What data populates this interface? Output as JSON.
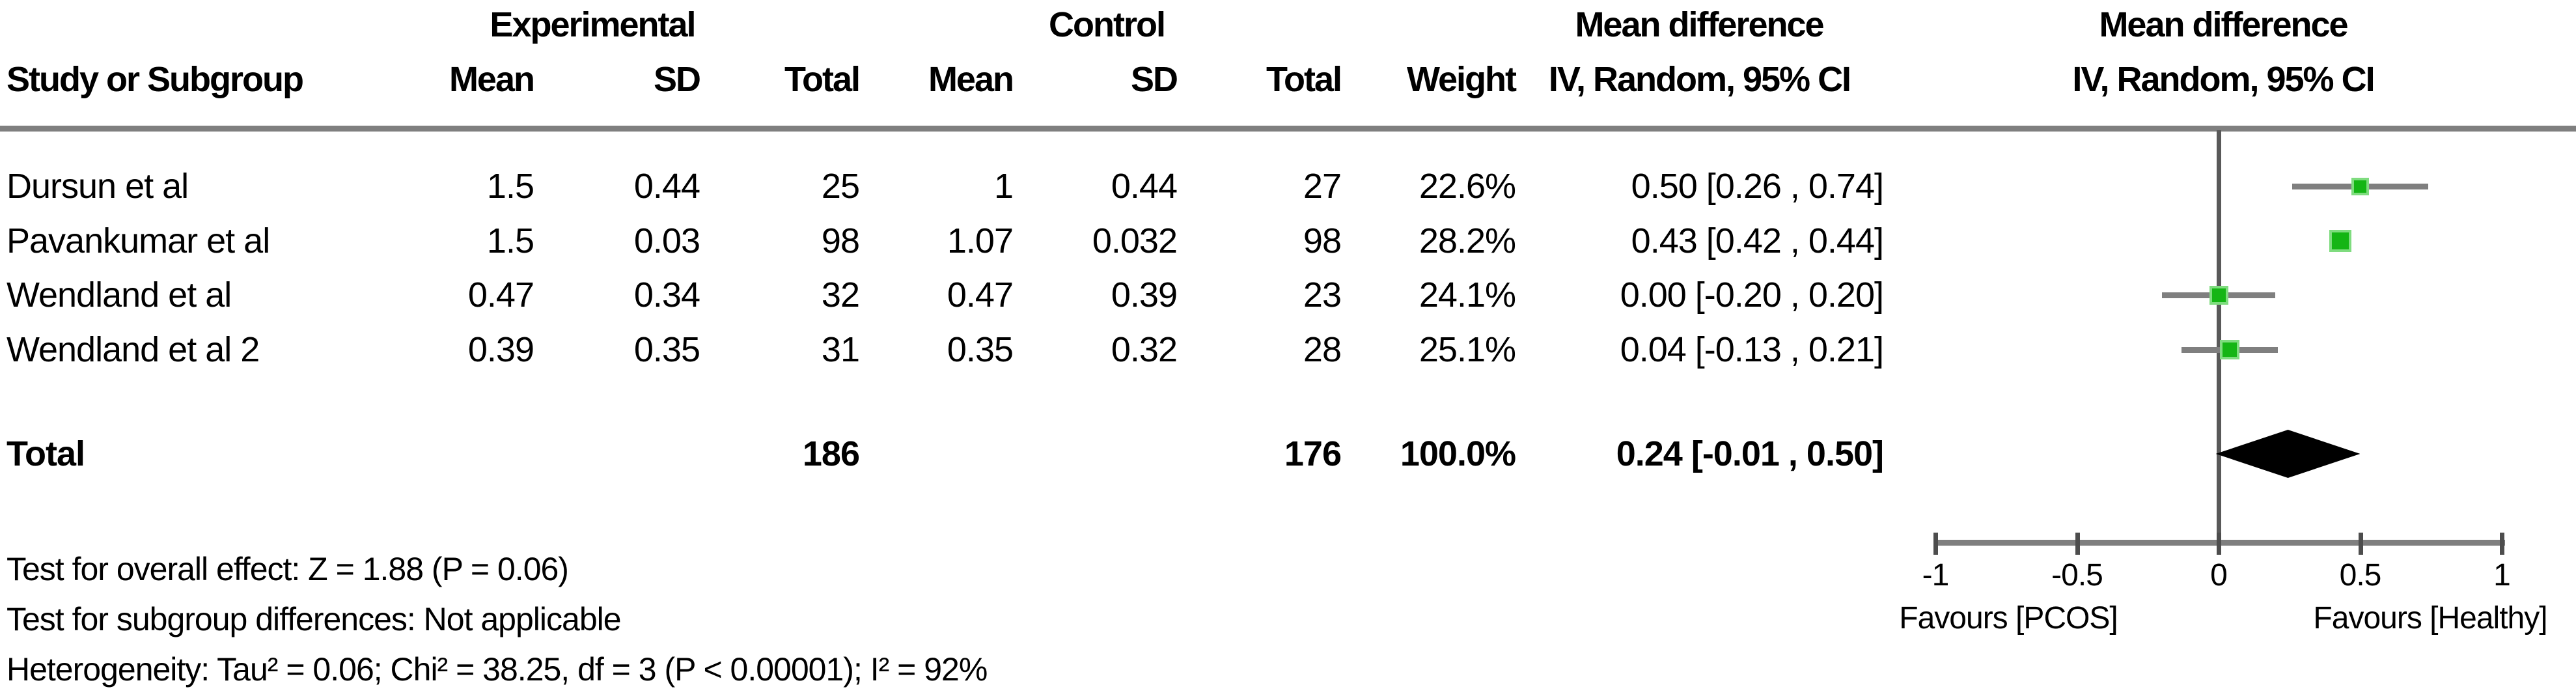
{
  "colors": {
    "square_green": "#14b514",
    "square_green_halo": "#7fdc7f",
    "ci_bar_gray": "#7f7f7f",
    "rule_gray": "#7f7f7f",
    "zero_line_gray": "#595959",
    "tick_dark_gray": "#4d4d4d",
    "diamond_black": "#000000",
    "text_black": "#000000",
    "background": "#ffffff"
  },
  "header": {
    "group_experimental": "Experimental",
    "group_control": "Control",
    "group_mean_difference": "Mean difference",
    "group_mean_difference_plot": "Mean difference",
    "col_study": "Study or Subgroup",
    "col_exp_mean": "Mean",
    "col_exp_sd": "SD",
    "col_exp_total": "Total",
    "col_ctl_mean": "Mean",
    "col_ctl_sd": "SD",
    "col_ctl_total": "Total",
    "col_weight": "Weight",
    "col_ci": "IV, Random, 95% CI",
    "col_ci_plot": "IV, Random, 95% CI"
  },
  "table": {
    "rows": [
      {
        "study": "Dursun et al",
        "exp_mean": "1.5",
        "exp_sd": "0.44",
        "exp_total": "25",
        "ctl_mean": "1",
        "ctl_sd": "0.44",
        "ctl_total": "27",
        "weight": "22.6%",
        "ci_text": "0.50 [0.26 , 0.74]"
      },
      {
        "study": "Pavankumar  et al",
        "exp_mean": "1.5",
        "exp_sd": "0.03",
        "exp_total": "98",
        "ctl_mean": "1.07",
        "ctl_sd": "0.032",
        "ctl_total": "98",
        "weight": "28.2%",
        "ci_text": "0.43 [0.42 , 0.44]"
      },
      {
        "study": "Wendland et al",
        "exp_mean": "0.47",
        "exp_sd": "0.34",
        "exp_total": "32",
        "ctl_mean": "0.47",
        "ctl_sd": "0.39",
        "ctl_total": "23",
        "weight": "24.1%",
        "ci_text": "0.00 [-0.20 , 0.20]"
      },
      {
        "study": "Wendland et al 2",
        "exp_mean": "0.39",
        "exp_sd": "0.35",
        "exp_total": "31",
        "ctl_mean": "0.35",
        "ctl_sd": "0.32",
        "ctl_total": "28",
        "weight": "25.1%",
        "ci_text": "0.04 [-0.13 , 0.21]"
      }
    ],
    "total_row": {
      "label": "Total",
      "exp_total": "186",
      "ctl_total": "176",
      "weight": "100.0%",
      "ci_text": "0.24 [-0.01 , 0.50]"
    }
  },
  "footer": {
    "overall_effect": "Test for overall effect: Z = 1.88 (P = 0.06)",
    "subgroup_differences": "Test for subgroup differences: Not applicable",
    "heterogeneity": "Heterogeneity: Tau² = 0.06; Chi² = 38.25, df = 3 (P < 0.00001); I² = 92%"
  },
  "chart_data": {
    "type": "forest",
    "effect_measure": "Mean difference, IV, Random, 95% CI",
    "x_axis": {
      "range": [
        -1,
        1
      ],
      "ticks": [
        -1,
        -0.5,
        0,
        0.5,
        1
      ],
      "tick_labels": [
        "-1",
        "-0.5",
        "0",
        "0.5",
        "1"
      ],
      "favours_left": "Favours [PCOS]",
      "favours_right": "Favours [Healthy]"
    },
    "studies": [
      {
        "name": "Dursun et al",
        "effect": 0.5,
        "ci_low": 0.26,
        "ci_high": 0.74,
        "weight_pct": 22.6
      },
      {
        "name": "Pavankumar  et al",
        "effect": 0.43,
        "ci_low": 0.42,
        "ci_high": 0.44,
        "weight_pct": 28.2
      },
      {
        "name": "Wendland et al",
        "effect": 0.0,
        "ci_low": -0.2,
        "ci_high": 0.2,
        "weight_pct": 24.1
      },
      {
        "name": "Wendland et al 2",
        "effect": 0.04,
        "ci_low": -0.13,
        "ci_high": 0.21,
        "weight_pct": 25.1
      }
    ],
    "total": {
      "name": "Total",
      "effect": 0.24,
      "ci_low": -0.01,
      "ci_high": 0.5,
      "weight_pct": 100.0
    }
  }
}
